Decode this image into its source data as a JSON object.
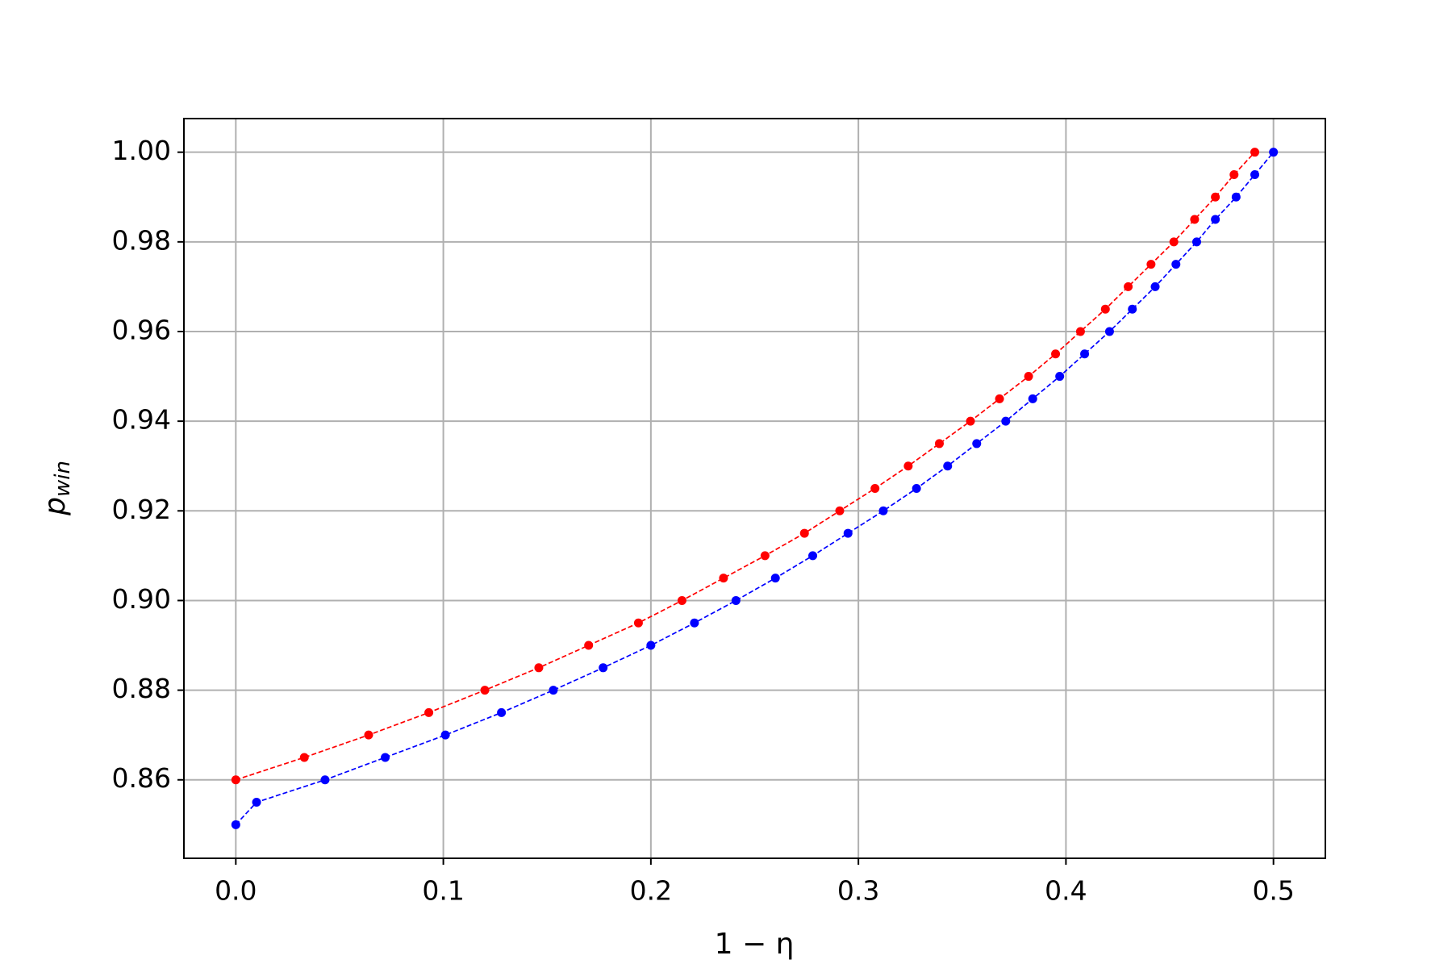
{
  "chart_data": {
    "type": "line",
    "xlabel": "1 − η",
    "ylabel": {
      "base": "p",
      "subscript": "win"
    },
    "xlim": [
      -0.025,
      0.525
    ],
    "ylim": [
      0.8425,
      1.0075
    ],
    "xticks": [
      {
        "value": 0,
        "label": "0.0"
      },
      0.1,
      0.2,
      0.3,
      0.4,
      0.5
    ],
    "yticks": [
      0.86,
      0.88,
      {
        "value": 0.9,
        "label": "0.90"
      },
      0.92,
      0.94,
      0.96,
      0.98,
      {
        "value": 1,
        "label": "1.00"
      }
    ],
    "grid": true,
    "series": [
      {
        "color": "#ff0000",
        "x": [
          0,
          0.033,
          0.064,
          0.093,
          0.12,
          0.146,
          0.17,
          0.194,
          0.215,
          0.235,
          0.255,
          0.274,
          0.291,
          0.308,
          0.324,
          0.339,
          0.354,
          0.368,
          0.382,
          0.395,
          0.407,
          0.419,
          0.43,
          0.441,
          0.452,
          0.462,
          0.472,
          0.481,
          0.491
        ],
        "values": [
          0.86,
          0.865,
          0.87,
          0.875,
          0.88,
          0.885,
          0.89,
          0.895,
          0.9,
          0.905,
          0.91,
          0.915,
          0.92,
          0.925,
          0.93,
          0.935,
          0.94,
          0.945,
          0.95,
          0.955,
          0.96,
          0.965,
          0.97,
          0.975,
          0.98,
          0.985,
          0.99,
          0.995,
          1.0
        ]
      },
      {
        "color": "#0000ff",
        "x": [
          0,
          0.01,
          0.043,
          0.072,
          0.101,
          0.128,
          0.153,
          0.177,
          0.2,
          0.221,
          0.241,
          0.26,
          0.278,
          0.295,
          0.312,
          0.328,
          0.343,
          0.357,
          0.371,
          0.384,
          0.397,
          0.409,
          0.421,
          0.432,
          0.443,
          0.453,
          0.463,
          0.472,
          0.482,
          0.491,
          0.5
        ],
        "values": [
          0.85,
          0.855,
          0.86,
          0.865,
          0.87,
          0.875,
          0.88,
          0.885,
          0.89,
          0.895,
          0.9,
          0.905,
          0.91,
          0.915,
          0.92,
          0.925,
          0.93,
          0.935,
          0.94,
          0.945,
          0.95,
          0.955,
          0.96,
          0.965,
          0.97,
          0.975,
          0.98,
          0.985,
          0.99,
          0.995,
          1.0
        ]
      }
    ]
  }
}
